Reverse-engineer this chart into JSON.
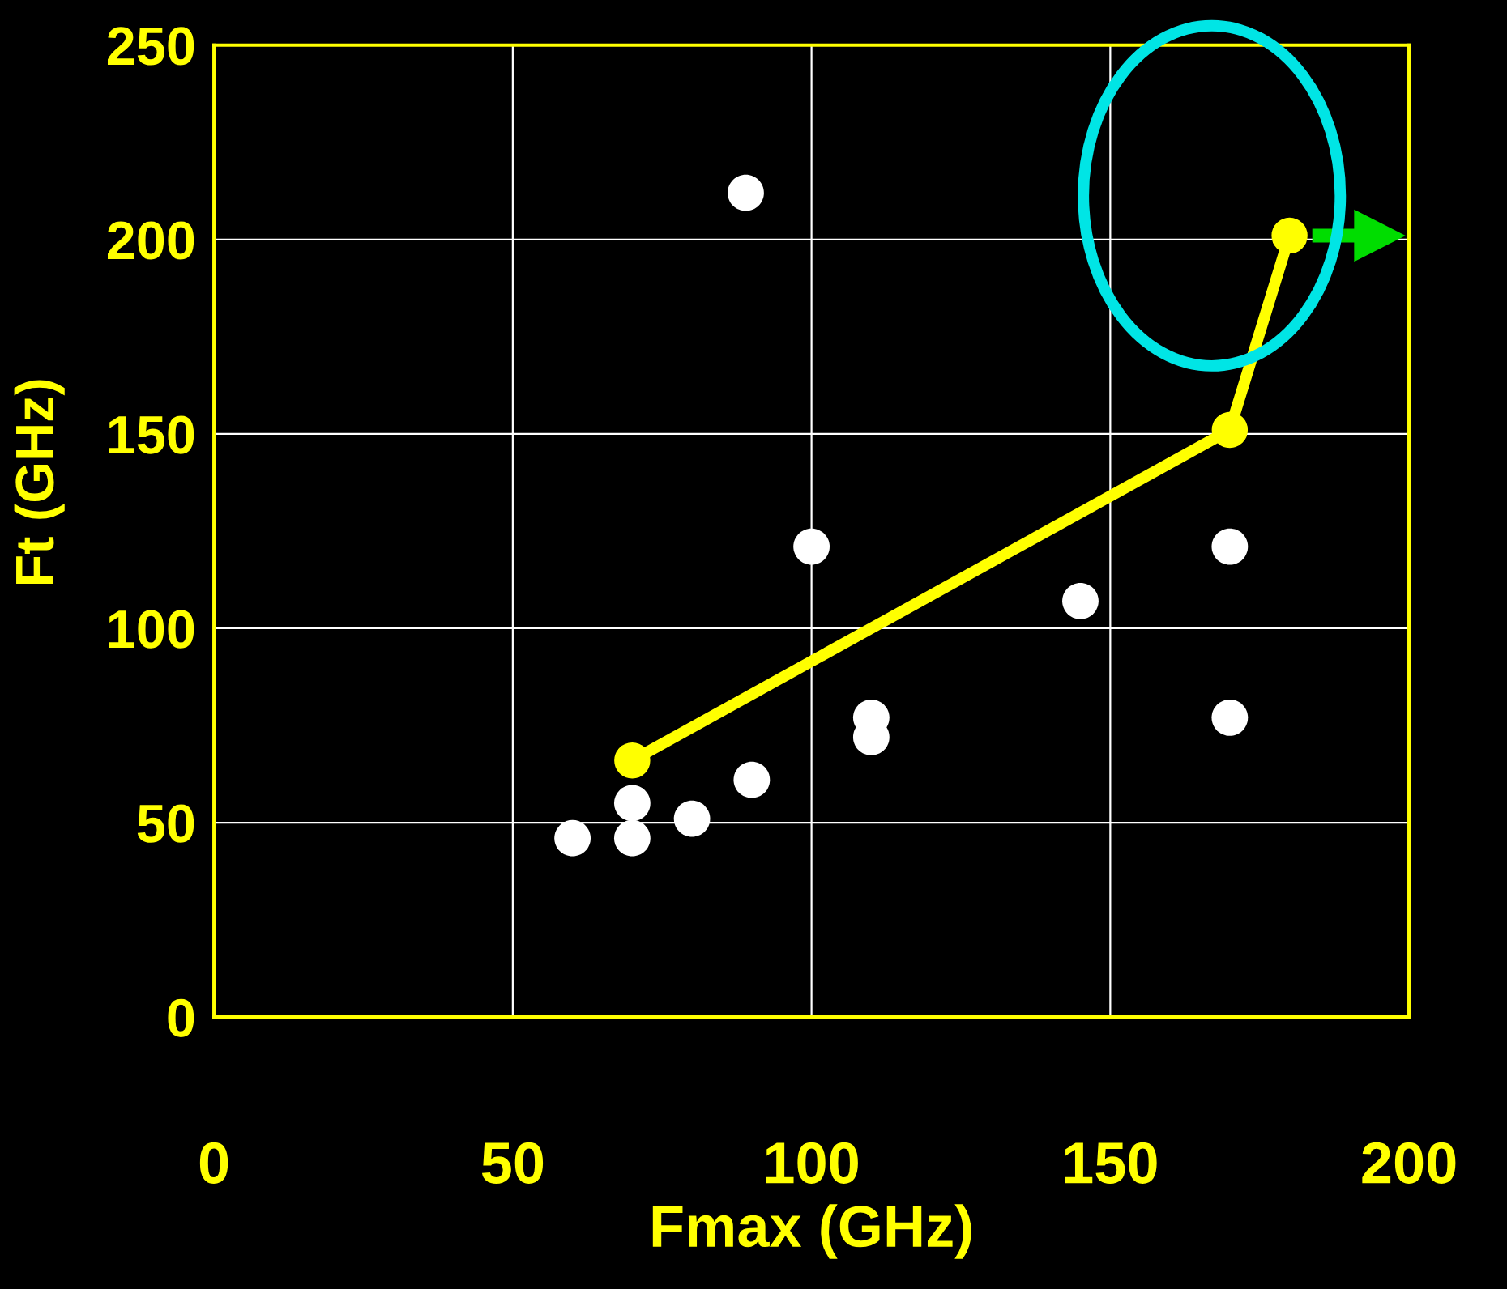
{
  "chart_data": {
    "type": "scatter",
    "xlabel": "Fmax (GHz)",
    "ylabel": "Ft (GHz)",
    "xlim": [
      0,
      200
    ],
    "xticks": [
      0,
      50,
      100,
      150,
      200
    ],
    "ylim": [
      0,
      250
    ],
    "yticks": [
      0,
      50,
      100,
      150,
      200,
      250
    ],
    "grid": true,
    "legend": false,
    "series": [
      {
        "color": "#ffffff",
        "marker": "circle",
        "x": [
          60,
          70,
          70,
          80,
          90,
          89,
          100,
          110,
          110,
          145,
          170,
          170
        ],
        "values": [
          46,
          55,
          46,
          51,
          61,
          212,
          121,
          77,
          72,
          107,
          121,
          77
        ]
      },
      {
        "type": "line",
        "color": "#ffff00",
        "marker": "circle",
        "line_style": "solid",
        "x": [
          70,
          170,
          180
        ],
        "values": [
          66,
          151,
          201
        ]
      }
    ]
  }
}
